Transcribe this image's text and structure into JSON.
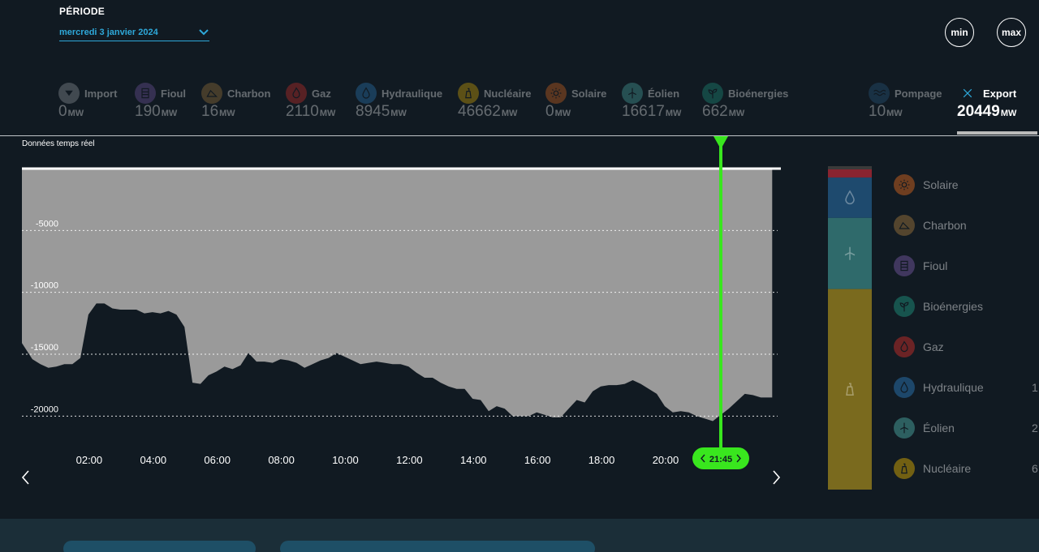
{
  "periode": {
    "label": "PÉRIODE",
    "value": "mercredi 3 janvier 2024"
  },
  "buttons": {
    "min": "min",
    "max": "max"
  },
  "sources": [
    {
      "id": "import",
      "name": "Import",
      "value": "0",
      "unit": "MW",
      "color": "#9aa0a6",
      "icon": "chevron-down-icon"
    },
    {
      "id": "fioul",
      "name": "Fioul",
      "value": "190",
      "unit": "MW",
      "color": "#7a5aa8",
      "icon": "oil-barrel-icon"
    },
    {
      "id": "charbon",
      "name": "Charbon",
      "value": "16",
      "unit": "MW",
      "color": "#a57b3d",
      "icon": "coal-icon"
    },
    {
      "id": "gaz",
      "name": "Gaz",
      "value": "2110",
      "unit": "MW",
      "color": "#d9302a",
      "icon": "flame-icon"
    },
    {
      "id": "hydraulique",
      "name": "Hydraulique",
      "value": "8945",
      "unit": "MW",
      "color": "#2d7fc1",
      "icon": "water-drop-icon"
    },
    {
      "id": "nucleaire",
      "name": "Nucléaire",
      "value": "46662",
      "unit": "MW",
      "color": "#e8b500",
      "icon": "nuclear-plant-icon"
    },
    {
      "id": "solaire",
      "name": "Solaire",
      "value": "0",
      "unit": "MW",
      "color": "#e26a1f",
      "icon": "sun-icon"
    },
    {
      "id": "eolien",
      "name": "Éolien",
      "value": "16617",
      "unit": "MW",
      "color": "#4fb3ab",
      "icon": "wind-turbine-icon"
    },
    {
      "id": "bioenergies",
      "name": "Bioénergies",
      "value": "662",
      "unit": "MW",
      "color": "#1f9b84",
      "icon": "sprout-icon"
    },
    {
      "id": "pompage",
      "name": "Pompage",
      "value": "10",
      "unit": "MW",
      "color": "#2a5c85",
      "icon": "waves-icon"
    },
    {
      "id": "export",
      "name": "Export",
      "value": "20449",
      "unit": "MW",
      "color": "#2ea8d9",
      "icon": "close-icon",
      "active": true
    }
  ],
  "realtime_label": "Données temps réel",
  "cursor_time": "21:45",
  "legend": [
    {
      "name": "Solaire",
      "color": "#e26a1f",
      "icon": "sun-icon",
      "value": ""
    },
    {
      "name": "Charbon",
      "color": "#a57b3d",
      "icon": "coal-icon",
      "value": ""
    },
    {
      "name": "Fioul",
      "color": "#7a5aa8",
      "icon": "oil-barrel-icon",
      "value": ""
    },
    {
      "name": "Bioénergies",
      "color": "#1f9b84",
      "icon": "sprout-icon",
      "value": ""
    },
    {
      "name": "Gaz",
      "color": "#d9302a",
      "icon": "flame-icon",
      "value": ""
    },
    {
      "name": "Hydraulique",
      "color": "#2d7fc1",
      "icon": "water-drop-icon",
      "value": "1"
    },
    {
      "name": "Éolien",
      "color": "#4fb3ab",
      "icon": "wind-turbine-icon",
      "value": "2"
    },
    {
      "name": "Nucléaire",
      "color": "#e8b500",
      "icon": "nuclear-plant-icon",
      "value": "6"
    }
  ],
  "stack_segments": [
    {
      "name": "Fioul/Gaz",
      "color": "#8a2430",
      "fraction": 0.035
    },
    {
      "name": "Hydraulique",
      "color": "#1e4a6e",
      "fraction": 0.125,
      "icon": "water-drop-icon"
    },
    {
      "name": "Éolien",
      "color": "#2f6a6b",
      "fraction": 0.22,
      "icon": "wind-turbine-icon"
    },
    {
      "name": "Nucléaire",
      "color": "#7a6a1e",
      "fraction": 0.62,
      "icon": "nuclear-plant-icon"
    }
  ],
  "chart_data": {
    "type": "area",
    "title": "",
    "xlabel": "",
    "ylabel": "",
    "x_ticks": [
      "02:00",
      "04:00",
      "06:00",
      "08:00",
      "10:00",
      "12:00",
      "14:00",
      "16:00",
      "18:00",
      "20:00"
    ],
    "y_ticks": [
      -5000,
      -10000,
      -15000,
      -20000
    ],
    "ylim": [
      -21500,
      0
    ],
    "xlim_hours": [
      0,
      23.75
    ],
    "series": [
      {
        "x": [
          0,
          0.25,
          0.5,
          0.75,
          1,
          1.25,
          1.5,
          1.75,
          2,
          2.25,
          2.5,
          2.75,
          3,
          3.25,
          3.5,
          3.75,
          4,
          4.25,
          4.5,
          4.75,
          5,
          5.25,
          5.5,
          5.75,
          6,
          6.25,
          6.5,
          6.75,
          7,
          7.25,
          7.5,
          7.75,
          8,
          8.25,
          8.5,
          8.75,
          9,
          9.25,
          9.5,
          9.75,
          10,
          10.25,
          10.5,
          10.75,
          11,
          11.25,
          11.5,
          11.75,
          12,
          12.25,
          12.5,
          12.75,
          13,
          13.25,
          13.5,
          13.75,
          14,
          14.25,
          14.5,
          14.75,
          15,
          15.25,
          15.5,
          15.75,
          16,
          16.25,
          16.5,
          16.75,
          17,
          17.25,
          17.5,
          17.75,
          18,
          18.25,
          18.5,
          18.75,
          19,
          19.25,
          19.5,
          19.75,
          20,
          20.25,
          20.5,
          20.75,
          21,
          21.25,
          21.5,
          21.75,
          22,
          22.25,
          22.5,
          22.75,
          23
        ],
        "values": [
          -14100,
          -15400,
          -15800,
          -16100,
          -16000,
          -15800,
          -15800,
          -15300,
          -11800,
          -10900,
          -10900,
          -11300,
          -11400,
          -11400,
          -11400,
          -11700,
          -11600,
          -11700,
          -11500,
          -11800,
          -12800,
          -17300,
          -17400,
          -16700,
          -16400,
          -16000,
          -16200,
          -15900,
          -14900,
          -15600,
          -15600,
          -15700,
          -15400,
          -15500,
          -15700,
          -16100,
          -15800,
          -15500,
          -15300,
          -14900,
          -15200,
          -15500,
          -15800,
          -15700,
          -15600,
          -15700,
          -15800,
          -15800,
          -16000,
          -16500,
          -16900,
          -16900,
          -17300,
          -17600,
          -17800,
          -17800,
          -18600,
          -18700,
          -19600,
          -19200,
          -19400,
          -20000,
          -20000,
          -20000,
          -19700,
          -19900,
          -20100,
          -20100,
          -19400,
          -18700,
          -18900,
          -18000,
          -17600,
          -17500,
          -17500,
          -17400,
          -17100,
          -17400,
          -17800,
          -18200,
          -19200,
          -19700,
          -19600,
          -19700,
          -20000,
          -20200,
          -20400,
          -19900,
          -19400,
          -18800,
          -18200,
          -18300,
          -18500
        ]
      }
    ],
    "upper_line": 0,
    "grid": "dotted"
  }
}
